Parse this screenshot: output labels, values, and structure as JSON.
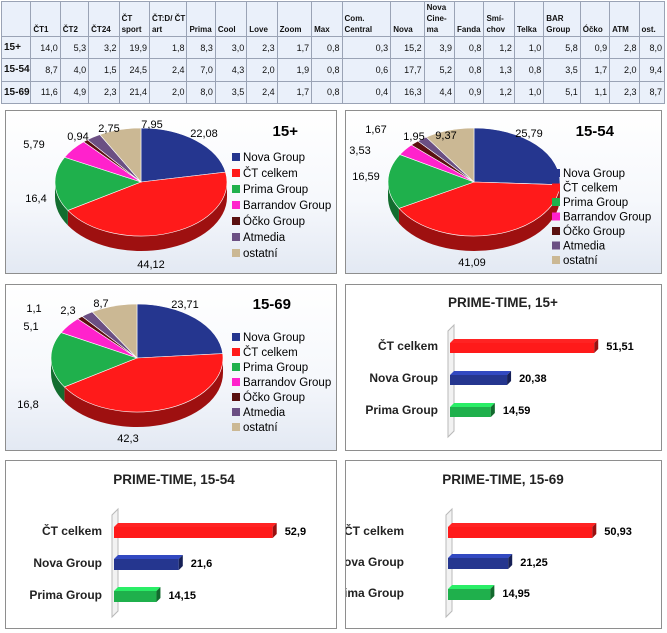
{
  "table": {
    "headers": [
      "",
      "ČT1",
      "ČT2",
      "ČT24",
      "ČT sport",
      "ČT:D/ ČT art",
      "Prima",
      "Cool",
      "Love",
      "Zoom",
      "Max",
      "Com. Central",
      "Nova",
      "Nova Cine-ma",
      "Fanda",
      "Smí-chov",
      "Telka",
      "BAR Group",
      "Óčko",
      "ATM",
      "ost."
    ],
    "rows": [
      {
        "label": "15+",
        "values": [
          "14,0",
          "5,3",
          "3,2",
          "19,9",
          "1,8",
          "8,3",
          "3,0",
          "2,3",
          "1,7",
          "0,8",
          "0,3",
          "15,2",
          "3,9",
          "0,8",
          "1,2",
          "1,0",
          "5,8",
          "0,9",
          "2,8",
          "8,0"
        ]
      },
      {
        "label": "15-54",
        "values": [
          "8,7",
          "4,0",
          "1,5",
          "24,5",
          "2,4",
          "7,0",
          "4,3",
          "2,0",
          "1,9",
          "0,8",
          "0,6",
          "17,7",
          "5,2",
          "0,8",
          "1,3",
          "0,8",
          "3,5",
          "1,7",
          "2,0",
          "9,4"
        ]
      },
      {
        "label": "15-69",
        "values": [
          "11,6",
          "4,9",
          "2,3",
          "21,4",
          "2,0",
          "8,0",
          "3,5",
          "2,4",
          "1,7",
          "0,8",
          "0,4",
          "16,3",
          "4,4",
          "0,9",
          "1,2",
          "1,0",
          "5,1",
          "1,1",
          "2,3",
          "8,7"
        ]
      }
    ]
  },
  "colors": {
    "nova": "#25368f",
    "ct": "#ff1a1a",
    "prima": "#1fb04c",
    "barrandov": "#ff22cc",
    "ocko": "#5a1010",
    "atmedia": "#6b4f83",
    "ostatni": "#cbb894"
  },
  "chart_data": [
    {
      "type": "pie",
      "title": "15+",
      "legend_position": "right",
      "categories": [
        "Nova Group",
        "ČT celkem",
        "Prima Group",
        "Barrandov Group",
        "Óčko Group",
        "Atmedia",
        "ostatní"
      ],
      "values": [
        22.08,
        44.12,
        16.4,
        5.79,
        0.94,
        2.75,
        7.95
      ],
      "labels": [
        "22,08",
        "44,12",
        "16,4",
        "5,79",
        "0,94",
        "2,75",
        "7,95"
      ]
    },
    {
      "type": "pie",
      "title": "15-54",
      "legend_position": "right",
      "categories": [
        "Nova Group",
        "ČT celkem",
        "Prima Group",
        "Barrandov Group",
        "Óčko Group",
        "Atmedia",
        "ostatní"
      ],
      "values": [
        25.79,
        41.09,
        16.59,
        3.53,
        1.67,
        1.95,
        9.37
      ],
      "labels": [
        "25,79",
        "41,09",
        "16,59",
        "3,53",
        "1,67",
        "1,95",
        "9,37"
      ]
    },
    {
      "type": "pie",
      "title": "15-69",
      "legend_position": "right",
      "categories": [
        "Nova Group",
        "ČT celkem",
        "Prima Group",
        "Barrandov Group",
        "Óčko Group",
        "Atmedia",
        "ostatní"
      ],
      "values": [
        23.71,
        42.3,
        16.8,
        5.1,
        1.1,
        2.3,
        8.7
      ],
      "labels": [
        "23,71",
        "42,3",
        "16,8",
        "5,1",
        "1,1",
        "2,3",
        "8,7"
      ]
    },
    {
      "type": "bar",
      "orientation": "horizontal",
      "title": "PRIME-TIME, 15+",
      "categories": [
        "ČT celkem",
        "Nova Group",
        "Prima Group"
      ],
      "values": [
        51.51,
        20.38,
        14.59
      ],
      "labels": [
        "51,51",
        "20,38",
        "14,59"
      ],
      "xlim": [
        0,
        60
      ]
    },
    {
      "type": "bar",
      "orientation": "horizontal",
      "title": "PRIME-TIME, 15-54",
      "categories": [
        "ČT celkem",
        "Nova Group",
        "Prima Group"
      ],
      "values": [
        52.9,
        21.6,
        14.15
      ],
      "labels": [
        "52,9",
        "21,6",
        "14,15"
      ],
      "xlim": [
        0,
        60
      ]
    },
    {
      "type": "bar",
      "orientation": "horizontal",
      "title": "PRIME-TIME, 15-69",
      "categories": [
        "ČT celkem",
        "Nova Group",
        "Prima Group"
      ],
      "values": [
        50.93,
        21.25,
        14.95
      ],
      "labels": [
        "50,93",
        "21,25",
        "14,95"
      ],
      "xlim": [
        0,
        60
      ]
    }
  ]
}
